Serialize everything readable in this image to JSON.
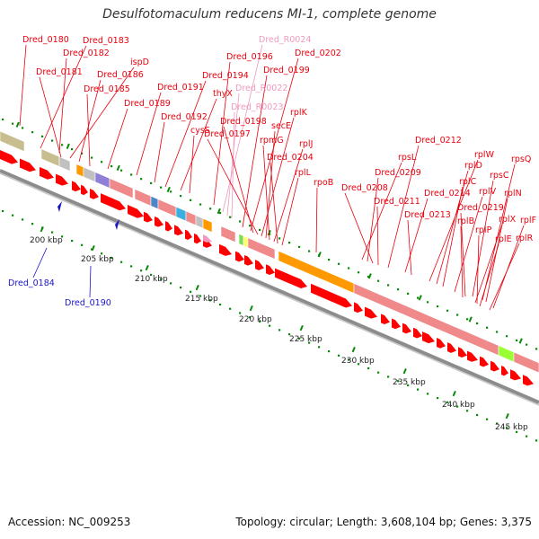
{
  "title": "Desulfotomaculum reducens MI-1, complete genome",
  "footer": {
    "accession": "Accession: NC_009253",
    "summary": "Topology: circular; Length: 3,608,104 bp; Genes: 3,375"
  },
  "colors": {
    "gene_label": "#e8000d",
    "rna_label": "#f09ac0",
    "minus_label": "#1a14c8",
    "cds_arrow": "#ff0000",
    "cog_default": "#f08a8a",
    "scale_tick": "#0a8a0a",
    "backbone": "#8c8c8c"
  },
  "labels_top": [
    {
      "text": "Dred_0180",
      "kind": "cds"
    },
    {
      "text": "Dred_0183",
      "kind": "cds"
    },
    {
      "text": "Dred_0182",
      "kind": "cds"
    },
    {
      "text": "Dred_0181",
      "kind": "cds"
    },
    {
      "text": "ispD",
      "kind": "cds"
    },
    {
      "text": "Dred_0186",
      "kind": "cds"
    },
    {
      "text": "Dred_0185",
      "kind": "cds"
    },
    {
      "text": "Dred_0189",
      "kind": "cds"
    },
    {
      "text": "Dred_0191",
      "kind": "cds"
    },
    {
      "text": "Dred_0192",
      "kind": "cds"
    },
    {
      "text": "Dred_0194",
      "kind": "cds"
    },
    {
      "text": "thyX",
      "kind": "cds"
    },
    {
      "text": "cysS",
      "kind": "cds"
    },
    {
      "text": "Dred_0196",
      "kind": "cds"
    },
    {
      "text": "Dred_R0024",
      "kind": "rna"
    },
    {
      "text": "Dred_R0022",
      "kind": "rna"
    },
    {
      "text": "Dred_R0023",
      "kind": "rna"
    },
    {
      "text": "Dred_0199",
      "kind": "cds"
    },
    {
      "text": "Dred_0202",
      "kind": "cds"
    },
    {
      "text": "Dred_0198",
      "kind": "cds"
    },
    {
      "text": "Dred_0197",
      "kind": "cds"
    },
    {
      "text": "rplK",
      "kind": "cds"
    },
    {
      "text": "secE",
      "kind": "cds"
    },
    {
      "text": "rpmG",
      "kind": "cds"
    },
    {
      "text": "rplJ",
      "kind": "cds"
    },
    {
      "text": "Dred_0204",
      "kind": "cds"
    },
    {
      "text": "rplL",
      "kind": "cds"
    },
    {
      "text": "rpoB",
      "kind": "cds"
    },
    {
      "text": "Dred_0212",
      "kind": "cds"
    },
    {
      "text": "rpsL",
      "kind": "cds"
    },
    {
      "text": "Dred_0209",
      "kind": "cds"
    },
    {
      "text": "Dred_0208",
      "kind": "cds"
    },
    {
      "text": "Dred_0211",
      "kind": "cds"
    },
    {
      "text": "Dred_0214",
      "kind": "cds"
    },
    {
      "text": "Dred_0213",
      "kind": "cds"
    },
    {
      "text": "rplW",
      "kind": "cds"
    },
    {
      "text": "rplD",
      "kind": "cds"
    },
    {
      "text": "rplC",
      "kind": "cds"
    },
    {
      "text": "rpsQ",
      "kind": "cds"
    },
    {
      "text": "rpsC",
      "kind": "cds"
    },
    {
      "text": "rplV",
      "kind": "cds"
    },
    {
      "text": "rplN",
      "kind": "cds"
    },
    {
      "text": "Dred_0219",
      "kind": "cds"
    },
    {
      "text": "rplB",
      "kind": "cds"
    },
    {
      "text": "rplX",
      "kind": "cds"
    },
    {
      "text": "rplF",
      "kind": "cds"
    },
    {
      "text": "rplP",
      "kind": "cds"
    },
    {
      "text": "rplE",
      "kind": "cds"
    },
    {
      "text": "rplR",
      "kind": "cds"
    }
  ],
  "labels_bottom": [
    {
      "text": "Dred_0184",
      "kind": "minus"
    },
    {
      "text": "Dred_0190",
      "kind": "minus"
    }
  ],
  "scale_labels": [
    "200 kbp",
    "205 kbp",
    "210 kbp",
    "215 kbp",
    "220 kbp",
    "225 kbp",
    "230 kbp",
    "235 kbp",
    "240 kbp",
    "245 kbp"
  ]
}
